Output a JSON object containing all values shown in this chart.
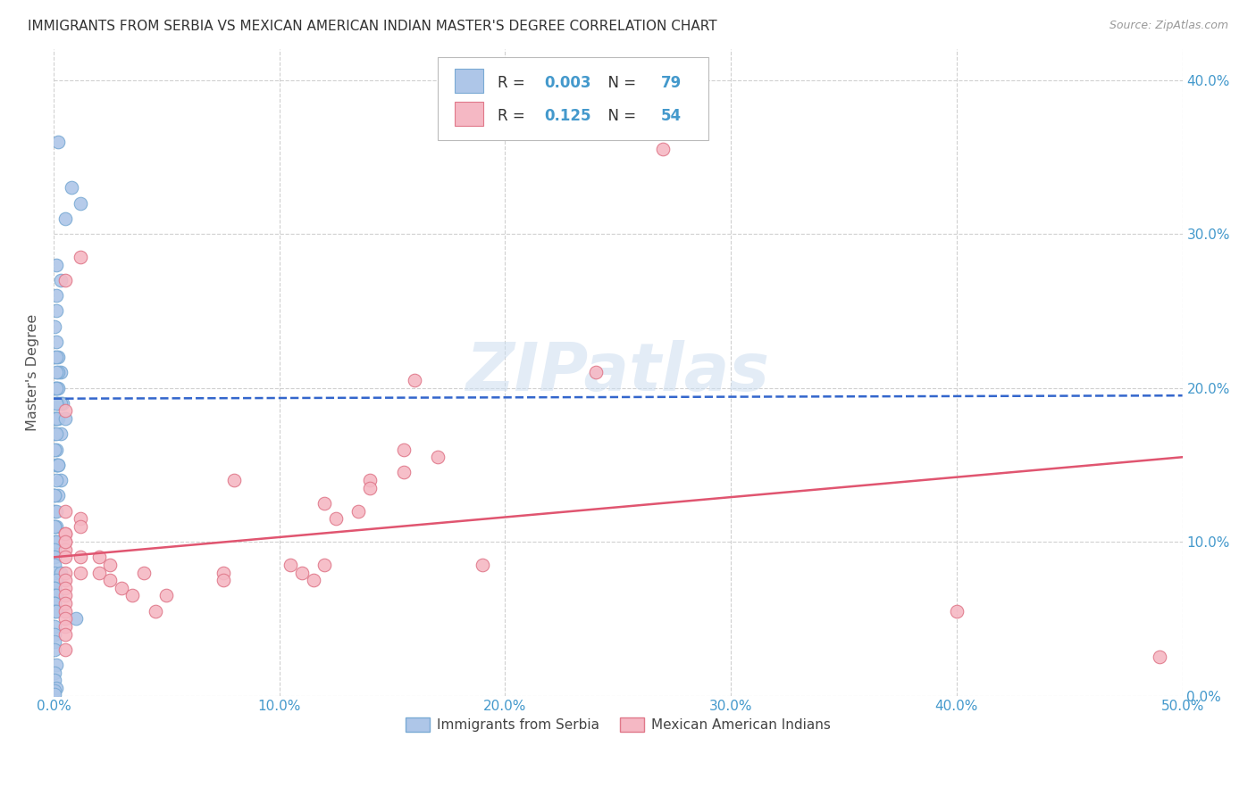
{
  "title": "IMMIGRANTS FROM SERBIA VS MEXICAN AMERICAN INDIAN MASTER'S DEGREE CORRELATION CHART",
  "source": "Source: ZipAtlas.com",
  "ylabel": "Master's Degree",
  "xlim": [
    0,
    0.5
  ],
  "ylim": [
    0,
    0.42
  ],
  "xticks": [
    0.0,
    0.1,
    0.2,
    0.3,
    0.4,
    0.5
  ],
  "yticks": [
    0.0,
    0.1,
    0.2,
    0.3,
    0.4
  ],
  "xtick_labels": [
    "0.0%",
    "10.0%",
    "20.0%",
    "30.0%",
    "40.0%",
    "50.0%"
  ],
  "ytick_labels_right": [
    "0.0%",
    "10.0%",
    "20.0%",
    "30.0%",
    "40.0%"
  ],
  "serbia_color": "#aec6e8",
  "serbia_edge": "#7aaad4",
  "mexican_color": "#f5b8c4",
  "mexican_edge": "#e0788a",
  "trendline_serbia_color": "#3366cc",
  "trendline_mexican_color": "#e05570",
  "legend_serbia_label": "Immigrants from Serbia",
  "legend_mexican_label": "Mexican American Indians",
  "serbia_R": 0.003,
  "serbia_N": 79,
  "mexican_R": 0.125,
  "mexican_N": 54,
  "serbia_x": [
    0.002,
    0.008,
    0.005,
    0.012,
    0.001,
    0.003,
    0.001,
    0.001,
    0.0005,
    0.001,
    0.002,
    0.0005,
    0.001,
    0.003,
    0.002,
    0.001,
    0.0005,
    0.001,
    0.002,
    0.001,
    0.004,
    0.002,
    0.003,
    0.001,
    0.001,
    0.001,
    0.0005,
    0.0005,
    0.002,
    0.001,
    0.005,
    0.003,
    0.0005,
    0.001,
    0.001,
    0.0005,
    0.001,
    0.001,
    0.002,
    0.002,
    0.003,
    0.001,
    0.002,
    0.0005,
    0.0005,
    0.0005,
    0.001,
    0.001,
    0.0005,
    0.0005,
    0.001,
    0.0005,
    0.001,
    0.0005,
    0.0005,
    0.0005,
    0.0005,
    0.0005,
    0.003,
    0.001,
    0.0005,
    0.0005,
    0.0005,
    0.001,
    0.0005,
    0.0005,
    0.0005,
    0.001,
    0.01,
    0.0005,
    0.0005,
    0.0005,
    0.0005,
    0.001,
    0.0005,
    0.0005,
    0.001,
    0.0005,
    0.0005
  ],
  "serbia_y": [
    0.36,
    0.33,
    0.31,
    0.32,
    0.28,
    0.27,
    0.26,
    0.25,
    0.24,
    0.23,
    0.22,
    0.22,
    0.22,
    0.21,
    0.21,
    0.21,
    0.2,
    0.2,
    0.2,
    0.2,
    0.19,
    0.19,
    0.19,
    0.19,
    0.19,
    0.18,
    0.18,
    0.18,
    0.18,
    0.18,
    0.18,
    0.17,
    0.17,
    0.17,
    0.16,
    0.16,
    0.15,
    0.15,
    0.15,
    0.15,
    0.14,
    0.14,
    0.13,
    0.13,
    0.13,
    0.12,
    0.12,
    0.11,
    0.11,
    0.11,
    0.1,
    0.1,
    0.1,
    0.095,
    0.09,
    0.09,
    0.085,
    0.08,
    0.08,
    0.075,
    0.07,
    0.07,
    0.065,
    0.065,
    0.06,
    0.06,
    0.055,
    0.055,
    0.05,
    0.045,
    0.04,
    0.035,
    0.03,
    0.02,
    0.015,
    0.01,
    0.005,
    0.003,
    0.001
  ],
  "mexican_x": [
    0.27,
    0.012,
    0.005,
    0.24,
    0.005,
    0.155,
    0.17,
    0.155,
    0.16,
    0.012,
    0.14,
    0.14,
    0.135,
    0.125,
    0.12,
    0.12,
    0.115,
    0.11,
    0.105,
    0.005,
    0.005,
    0.08,
    0.075,
    0.075,
    0.005,
    0.005,
    0.005,
    0.005,
    0.005,
    0.005,
    0.005,
    0.005,
    0.005,
    0.005,
    0.005,
    0.012,
    0.012,
    0.012,
    0.02,
    0.02,
    0.025,
    0.025,
    0.03,
    0.035,
    0.04,
    0.045,
    0.05,
    0.19,
    0.4,
    0.49,
    0.005,
    0.005,
    0.005,
    0.005
  ],
  "mexican_y": [
    0.355,
    0.285,
    0.27,
    0.21,
    0.185,
    0.16,
    0.155,
    0.145,
    0.205,
    0.115,
    0.14,
    0.135,
    0.12,
    0.115,
    0.125,
    0.085,
    0.075,
    0.08,
    0.085,
    0.105,
    0.1,
    0.14,
    0.08,
    0.075,
    0.095,
    0.09,
    0.08,
    0.075,
    0.07,
    0.065,
    0.06,
    0.055,
    0.05,
    0.045,
    0.04,
    0.11,
    0.09,
    0.08,
    0.09,
    0.08,
    0.085,
    0.075,
    0.07,
    0.065,
    0.08,
    0.055,
    0.065,
    0.085,
    0.055,
    0.025,
    0.12,
    0.105,
    0.1,
    0.03
  ],
  "watermark": "ZIPatlas",
  "bg_color": "#ffffff",
  "grid_color": "#d0d0d0",
  "title_color": "#333333",
  "axis_color": "#4499cc",
  "trendline_serbia_start_y": 0.193,
  "trendline_serbia_end_y": 0.195,
  "trendline_mexican_start_y": 0.09,
  "trendline_mexican_end_y": 0.155
}
